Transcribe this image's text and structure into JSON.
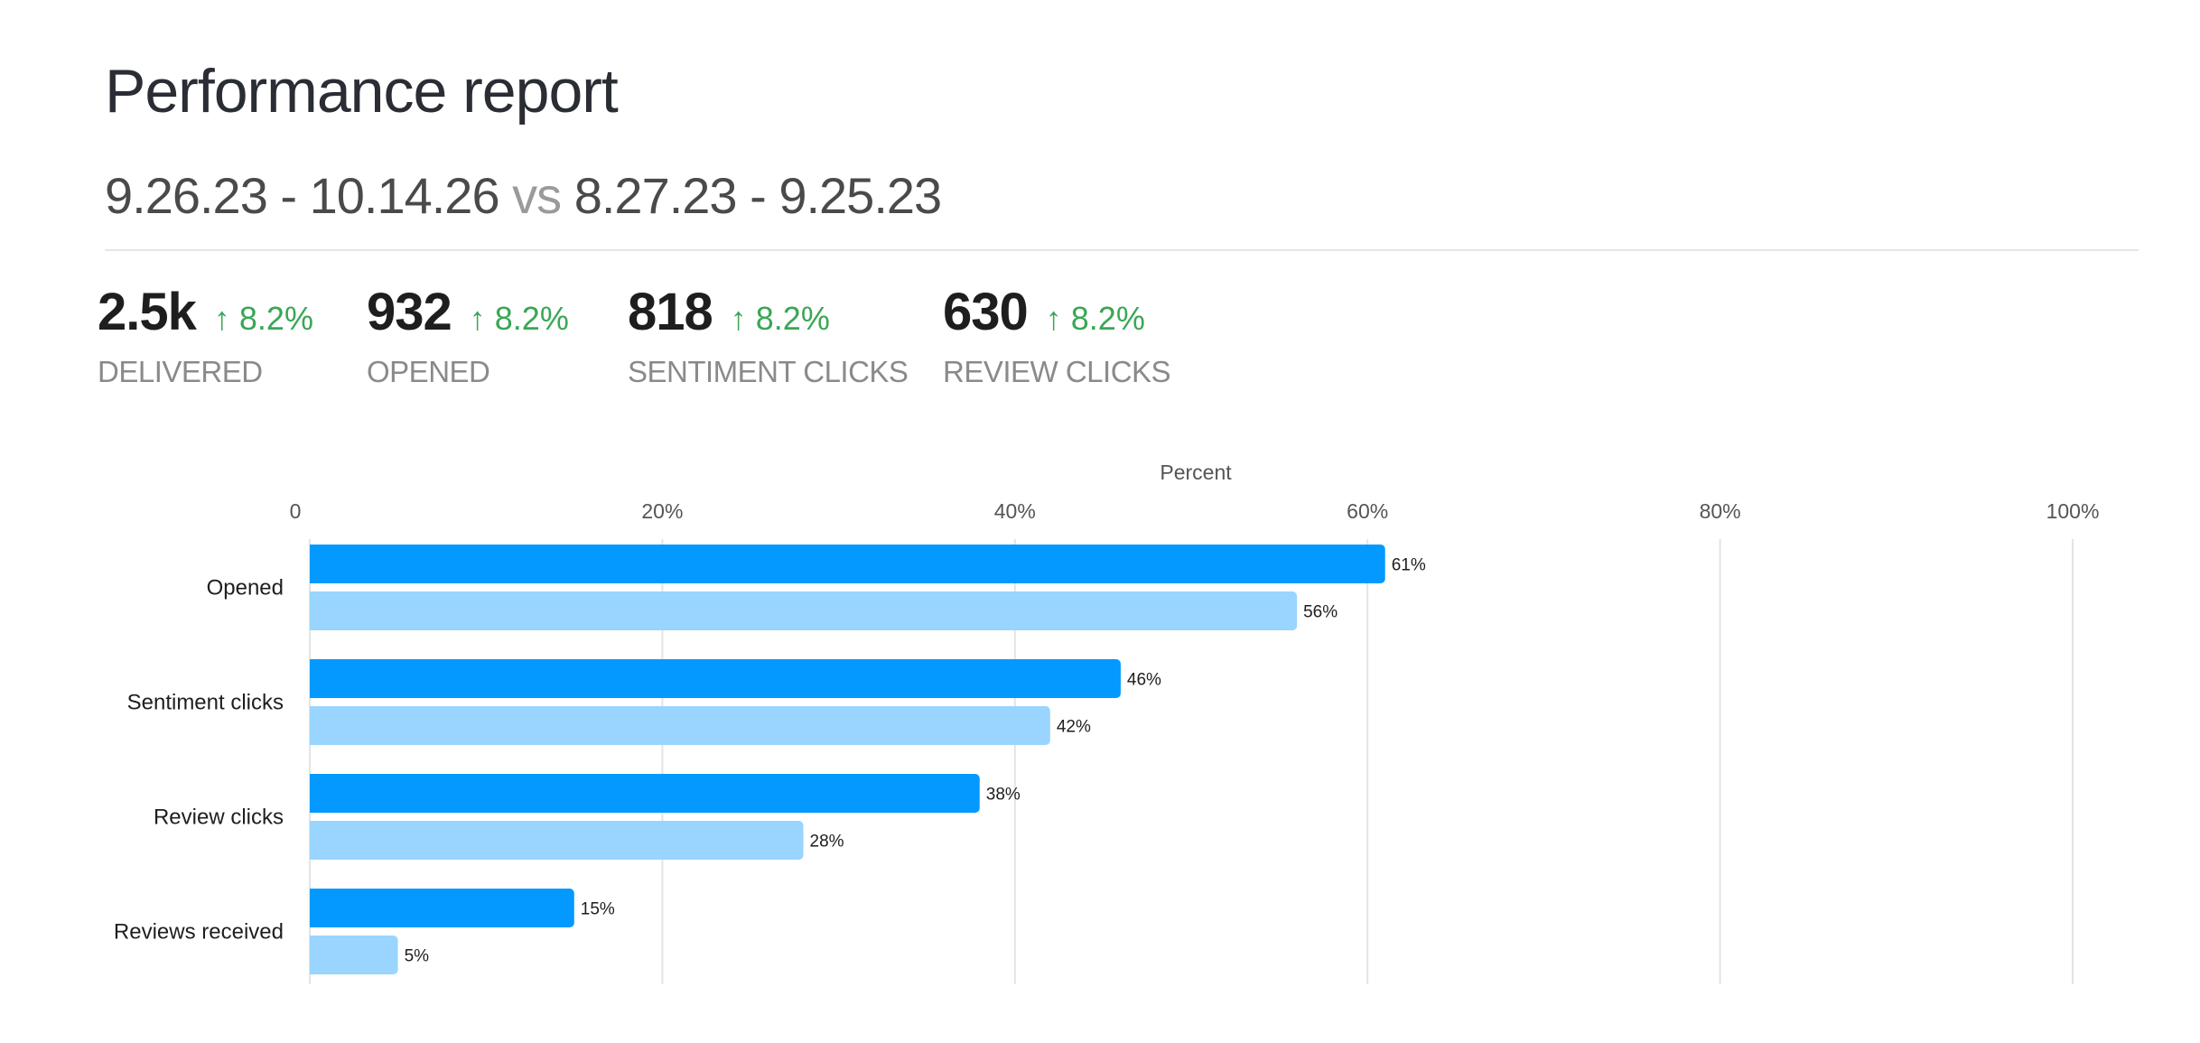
{
  "header": {
    "title": "Performance report",
    "range_current": "9.26.23 - 10.14.26",
    "vs_label": "vs",
    "range_previous": "8.27.23 - 9.25.23"
  },
  "kpis": [
    {
      "value": "2.5k",
      "change": "↑ 8.2%",
      "label": "DELIVERED"
    },
    {
      "value": "932",
      "change": "↑ 8.2%",
      "label": "OPENED"
    },
    {
      "value": "818",
      "change": "↑ 8.2%",
      "label": "SENTIMENT CLICKS"
    },
    {
      "value": "630",
      "change": "↑ 8.2%",
      "label": "REVIEW CLICKS"
    }
  ],
  "colors": {
    "current": "#0399ff",
    "previous": "#99d5ff",
    "positive": "#3aa655"
  },
  "chart_data": {
    "type": "bar",
    "orientation": "horizontal",
    "xlabel": "Percent",
    "xlim": [
      0,
      100
    ],
    "xticks": [
      "0",
      "20%",
      "40%",
      "60%",
      "80%",
      "100%"
    ],
    "grid": true,
    "categories": [
      "Opened",
      "Sentiment clicks",
      "Review clicks",
      "Reviews received"
    ],
    "series": [
      {
        "values": [
          61,
          46,
          38,
          15
        ],
        "labels": [
          "61%",
          "46%",
          "38%",
          "15%"
        ]
      },
      {
        "values": [
          56,
          42,
          28,
          5
        ],
        "labels": [
          "56%",
          "42%",
          "28%",
          "5%"
        ]
      }
    ]
  }
}
